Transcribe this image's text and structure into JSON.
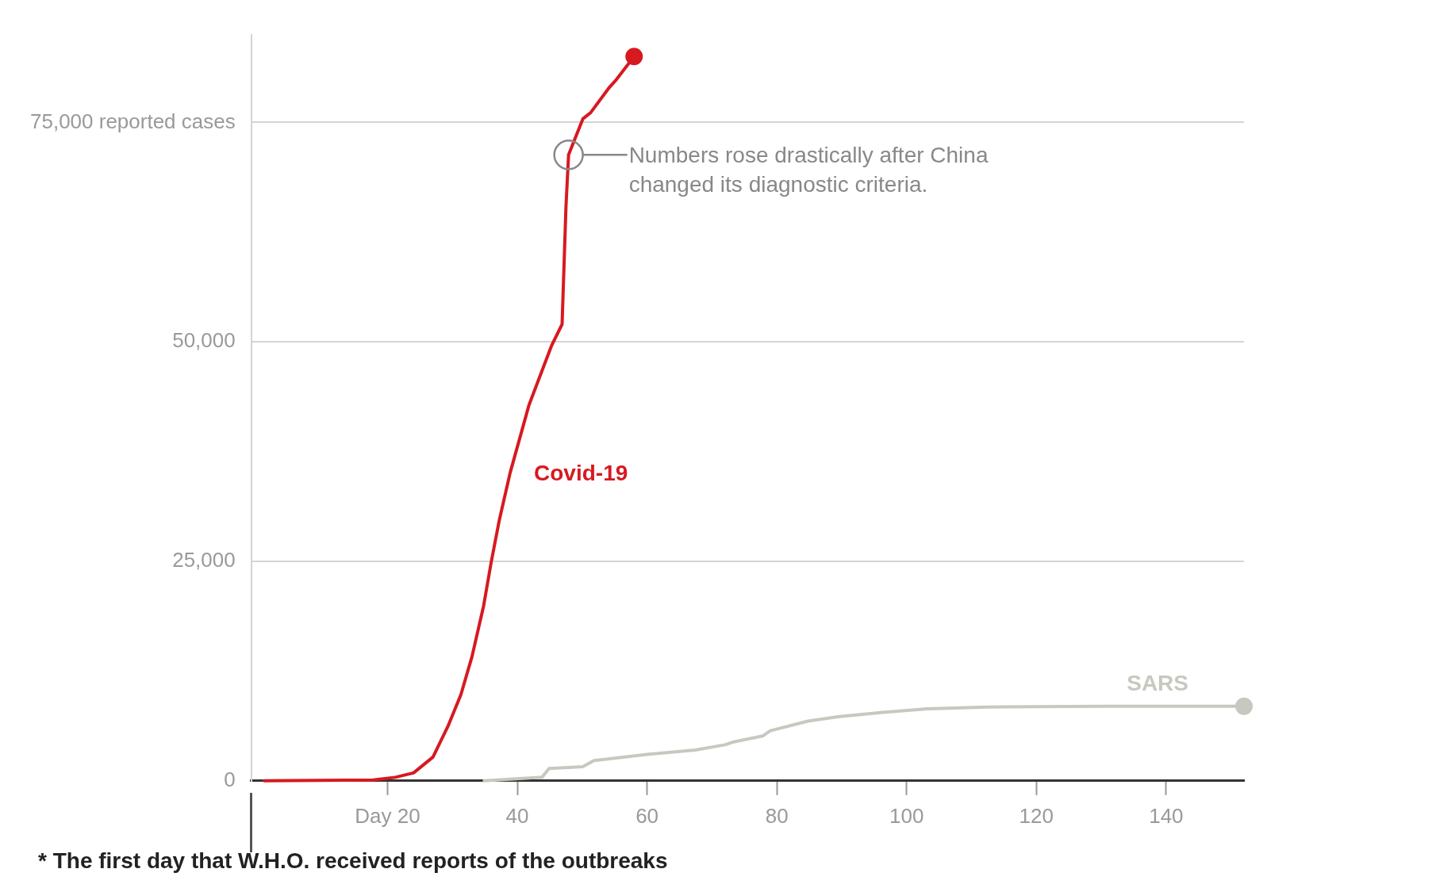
{
  "chart_data": {
    "type": "line",
    "x": [
      1,
      17.8,
      21.2,
      24,
      27,
      29.3,
      31.3,
      33,
      34.8,
      36,
      37.2,
      38.9,
      41.8,
      45.3,
      46.9,
      47.5,
      47.9,
      50.1,
      51.3,
      54.2,
      55.3,
      58
    ],
    "series": [
      {
        "name": "Covid-19",
        "color": "#d71920",
        "values": [
          0,
          100,
          400,
          900,
          2700,
          6200,
          9800,
          14100,
          19900,
          25000,
          29600,
          35100,
          42800,
          49600,
          52000,
          65400,
          71300,
          75400,
          76100,
          79000,
          79900,
          82500
        ]
      },
      {
        "name": "SARS",
        "color": "#c8c8c0",
        "x": [
          34.9,
          43.8,
          44.9,
          50.1,
          51.8,
          60,
          67.4,
          72,
          73.2,
          77.8,
          79,
          84.8,
          89.4,
          96.3,
          103.2,
          112.5,
          131,
          152
        ],
        "values": [
          0,
          400,
          1400,
          1600,
          2300,
          3000,
          3500,
          4100,
          4400,
          5100,
          5700,
          6800,
          7300,
          7800,
          8200,
          8400,
          8500,
          8500
        ]
      }
    ],
    "xlim": [
      -1,
      152
    ],
    "xticks": [
      {
        "value": 20,
        "label": "Day 20"
      },
      40,
      60,
      80,
      100,
      120,
      140
    ],
    "ylim": [
      0,
      85000
    ],
    "yticks": [
      0,
      {
        "value": 25000,
        "label": "25,000"
      },
      {
        "value": 50000,
        "label": "50,000"
      },
      {
        "value": 75000,
        "label": "75,000 reported cases"
      }
    ],
    "grid": "y",
    "legend": false,
    "line_style": "solid",
    "annotations": [
      {
        "text": "Numbers rose drastically after China changed its diagnostic criteria.",
        "x": 47.9,
        "y": 71300
      },
      "* The first day that W.H.O. received reports of the outbreaks"
    ]
  }
}
